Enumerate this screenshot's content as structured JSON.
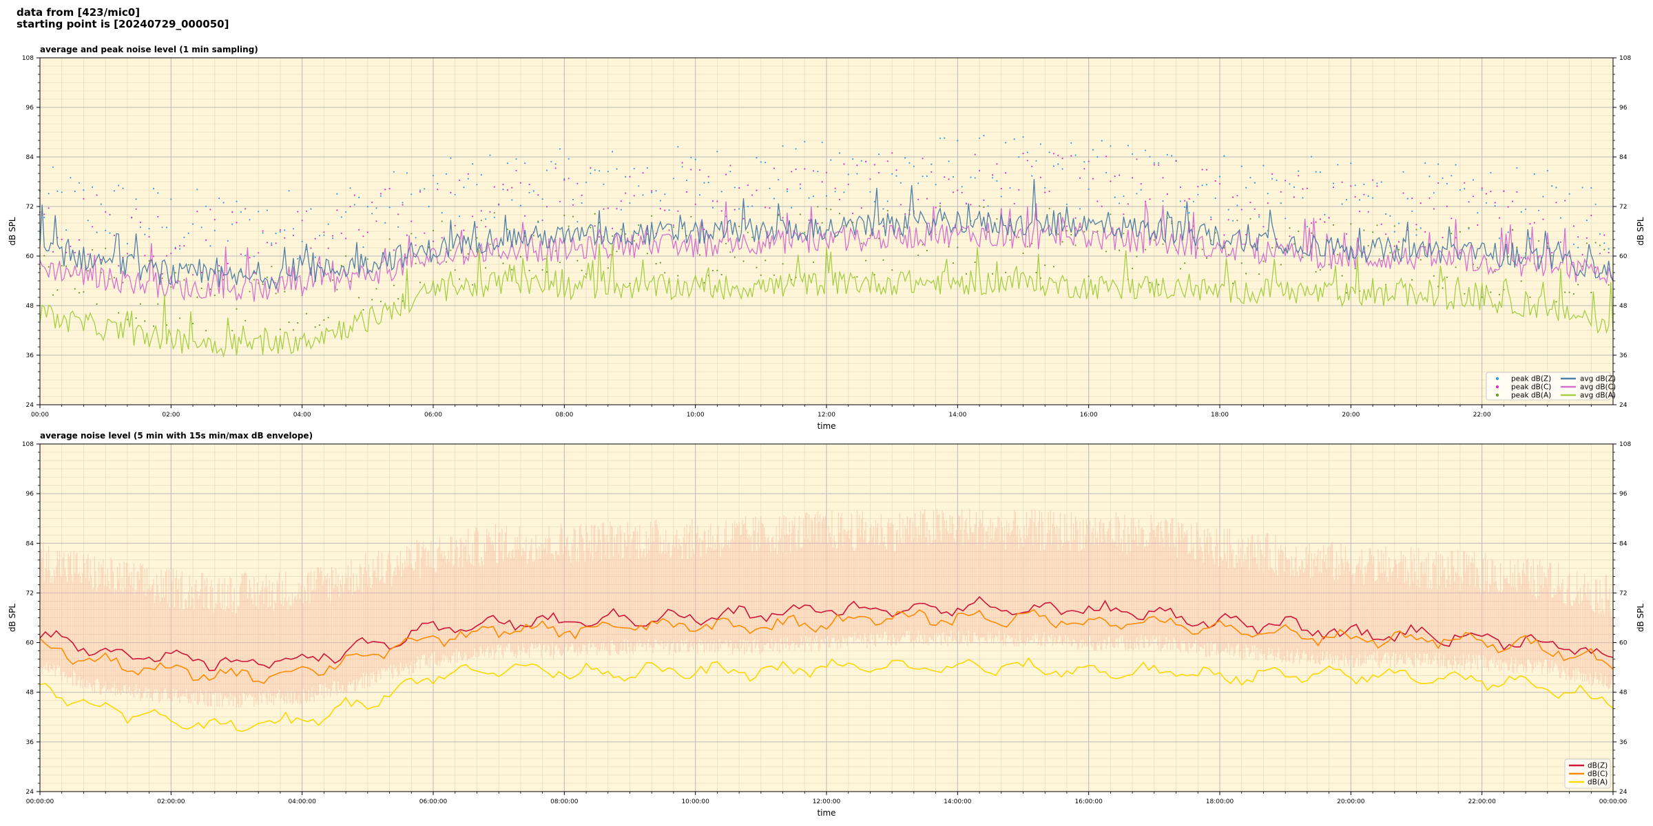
{
  "header": {
    "line1": "data from [423/mic0]",
    "line2": "starting point is [20240729_000050]"
  },
  "colors": {
    "plot_bg": "#fff6d9",
    "grid_major": "#b8b8b8",
    "grid_minor": "#e6ddc0",
    "z_avg": "#4f7fa8",
    "c_avg": "#d76fd0",
    "a_avg": "#a6cf45",
    "z_peak": "#2ea0e0",
    "c_peak": "#e030c0",
    "a_peak": "#6a9a2a",
    "z_5min": "#d0143a",
    "c_5min": "#ff8c00",
    "a_5min": "#ffd700",
    "envelope": "#f7b8a0"
  },
  "chart_data": [
    {
      "type": "line",
      "title": "average and peak noise level (1 min sampling)",
      "xlabel": "time",
      "ylabel": "dB SPL",
      "ylim": [
        24,
        108
      ],
      "xlim_hours": [
        0,
        24
      ],
      "x_ticks": [
        "00:00",
        "02:00",
        "04:00",
        "06:00",
        "08:00",
        "10:00",
        "12:00",
        "14:00",
        "16:00",
        "18:00",
        "20:00",
        "22:00"
      ],
      "y_ticks": [
        "24",
        "36",
        "48",
        "60",
        "72",
        "84",
        "96",
        "108"
      ],
      "grid": true,
      "legend_position": "bottom-right",
      "legend": [
        "peak dB(Z)",
        "peak dB(C)",
        "peak dB(A)",
        "avg dB(Z)",
        "avg dB(C)",
        "avg dB(A)"
      ],
      "series": [
        {
          "name": "avg dB(Z)",
          "kind": "line",
          "x_hours": [
            0,
            1,
            2,
            3,
            4,
            5,
            6,
            7,
            8,
            9,
            10,
            11,
            12,
            13,
            14,
            15,
            16,
            17,
            18,
            19,
            20,
            21,
            22,
            23,
            24
          ],
          "values": [
            63,
            60,
            57,
            56,
            57,
            60,
            63,
            66,
            66,
            67,
            67,
            68,
            68,
            69,
            70,
            69,
            69,
            68,
            66,
            65,
            63,
            63,
            62,
            61,
            58
          ]
        },
        {
          "name": "avg dB(C)",
          "kind": "line",
          "x_hours": [
            0,
            1,
            2,
            3,
            4,
            5,
            6,
            7,
            8,
            9,
            10,
            11,
            12,
            13,
            14,
            15,
            16,
            17,
            18,
            19,
            20,
            21,
            22,
            23,
            24
          ],
          "values": [
            59,
            56,
            54,
            53,
            54,
            57,
            61,
            63,
            63,
            64,
            64,
            65,
            65,
            66,
            67,
            66,
            66,
            65,
            63,
            62,
            61,
            61,
            60,
            59,
            56
          ]
        },
        {
          "name": "avg dB(A)",
          "kind": "line",
          "x_hours": [
            0,
            1,
            2,
            3,
            4,
            5,
            6,
            7,
            8,
            9,
            10,
            11,
            12,
            13,
            14,
            15,
            16,
            17,
            18,
            19,
            20,
            21,
            22,
            23,
            24
          ],
          "values": [
            47,
            44,
            41,
            40,
            41,
            46,
            53,
            55,
            54,
            54,
            54,
            54,
            55,
            55,
            55,
            55,
            54,
            54,
            53,
            53,
            52,
            52,
            51,
            49,
            45
          ]
        },
        {
          "name": "peak dB(Z)",
          "kind": "scatter",
          "x_hours": [
            0,
            1,
            2,
            3,
            4,
            5,
            6,
            7,
            8,
            9,
            10,
            11,
            12,
            13,
            14,
            15,
            16,
            17,
            18,
            19,
            20,
            21,
            22,
            23,
            24
          ],
          "values": [
            73,
            71,
            68,
            67,
            68,
            71,
            74,
            77,
            77,
            78,
            78,
            79,
            79,
            80,
            81,
            80,
            80,
            79,
            77,
            76,
            74,
            74,
            73,
            72,
            69
          ]
        },
        {
          "name": "peak dB(C)",
          "kind": "scatter",
          "x_hours": [
            0,
            1,
            2,
            3,
            4,
            5,
            6,
            7,
            8,
            9,
            10,
            11,
            12,
            13,
            14,
            15,
            16,
            17,
            18,
            19,
            20,
            21,
            22,
            23,
            24
          ],
          "values": [
            69,
            67,
            64,
            63,
            64,
            67,
            70,
            73,
            73,
            74,
            74,
            75,
            75,
            76,
            77,
            76,
            76,
            75,
            73,
            72,
            70,
            70,
            69,
            68,
            65
          ]
        },
        {
          "name": "peak dB(A)",
          "kind": "scatter",
          "x_hours": [
            0,
            1,
            2,
            3,
            4,
            5,
            6,
            7,
            8,
            9,
            10,
            11,
            12,
            13,
            14,
            15,
            16,
            17,
            18,
            19,
            20,
            21,
            22,
            23,
            24
          ],
          "values": [
            57,
            54,
            51,
            50,
            51,
            55,
            60,
            62,
            62,
            62,
            62,
            63,
            63,
            63,
            64,
            63,
            63,
            62,
            61,
            61,
            60,
            60,
            59,
            57,
            54
          ]
        }
      ]
    },
    {
      "type": "line",
      "title": "average noise level (5 min with 15s min/max dB envelope)",
      "xlabel": "time",
      "ylabel": "dB SPL",
      "ylim": [
        24,
        108
      ],
      "xlim_hours": [
        0,
        24
      ],
      "x_ticks": [
        "00:00:00",
        "02:00:00",
        "04:00:00",
        "06:00:00",
        "08:00:00",
        "10:00:00",
        "12:00:00",
        "14:00:00",
        "16:00:00",
        "18:00:00",
        "20:00:00",
        "22:00:00",
        "00:00:00"
      ],
      "y_ticks": [
        "24",
        "36",
        "48",
        "60",
        "72",
        "84",
        "96",
        "108"
      ],
      "grid": true,
      "legend_position": "bottom-right",
      "legend": [
        "dB(Z)",
        "dB(C)",
        "dB(A)"
      ],
      "series": [
        {
          "name": "dB(Z)",
          "kind": "line",
          "x_hours": [
            0,
            1,
            2,
            3,
            4,
            5,
            6,
            7,
            8,
            9,
            10,
            11,
            12,
            13,
            14,
            15,
            16,
            17,
            18,
            19,
            20,
            21,
            22,
            23,
            24
          ],
          "values": [
            62,
            58,
            56,
            55,
            56,
            59,
            63,
            65,
            65,
            66,
            66,
            67,
            68,
            68,
            69,
            68,
            68,
            67,
            65,
            64,
            62,
            62,
            61,
            60,
            56
          ]
        },
        {
          "name": "dB(C)",
          "kind": "line",
          "x_hours": [
            0,
            1,
            2,
            3,
            4,
            5,
            6,
            7,
            8,
            9,
            10,
            11,
            12,
            13,
            14,
            15,
            16,
            17,
            18,
            19,
            20,
            21,
            22,
            23,
            24
          ],
          "values": [
            59,
            55,
            53,
            52,
            53,
            57,
            61,
            63,
            63,
            64,
            64,
            64,
            65,
            66,
            66,
            66,
            65,
            65,
            63,
            62,
            61,
            61,
            60,
            59,
            55
          ]
        },
        {
          "name": "dB(A)",
          "kind": "line",
          "x_hours": [
            0,
            1,
            2,
            3,
            4,
            5,
            6,
            7,
            8,
            9,
            10,
            11,
            12,
            13,
            14,
            15,
            16,
            17,
            18,
            19,
            20,
            21,
            22,
            23,
            24
          ],
          "values": [
            49,
            44,
            41,
            40,
            41,
            46,
            52,
            54,
            53,
            53,
            53,
            53,
            54,
            54,
            54,
            54,
            53,
            53,
            52,
            52,
            52,
            52,
            51,
            49,
            46
          ]
        },
        {
          "name": "envelope max",
          "kind": "band",
          "x_hours": [
            0,
            1,
            2,
            3,
            4,
            5,
            6,
            7,
            8,
            9,
            10,
            11,
            12,
            13,
            14,
            15,
            16,
            17,
            18,
            19,
            20,
            21,
            22,
            23,
            24
          ],
          "values": [
            78,
            74,
            71,
            70,
            71,
            75,
            79,
            82,
            82,
            83,
            83,
            84,
            85,
            85,
            86,
            85,
            85,
            84,
            81,
            79,
            77,
            76,
            75,
            73,
            69
          ]
        },
        {
          "name": "envelope min",
          "kind": "band",
          "x_hours": [
            0,
            1,
            2,
            3,
            4,
            5,
            6,
            7,
            8,
            9,
            10,
            11,
            12,
            13,
            14,
            15,
            16,
            17,
            18,
            19,
            20,
            21,
            22,
            23,
            24
          ],
          "values": [
            56,
            51,
            49,
            48,
            49,
            53,
            58,
            60,
            60,
            61,
            61,
            61,
            62,
            63,
            63,
            63,
            62,
            62,
            60,
            59,
            58,
            58,
            57,
            56,
            52
          ]
        }
      ]
    }
  ]
}
